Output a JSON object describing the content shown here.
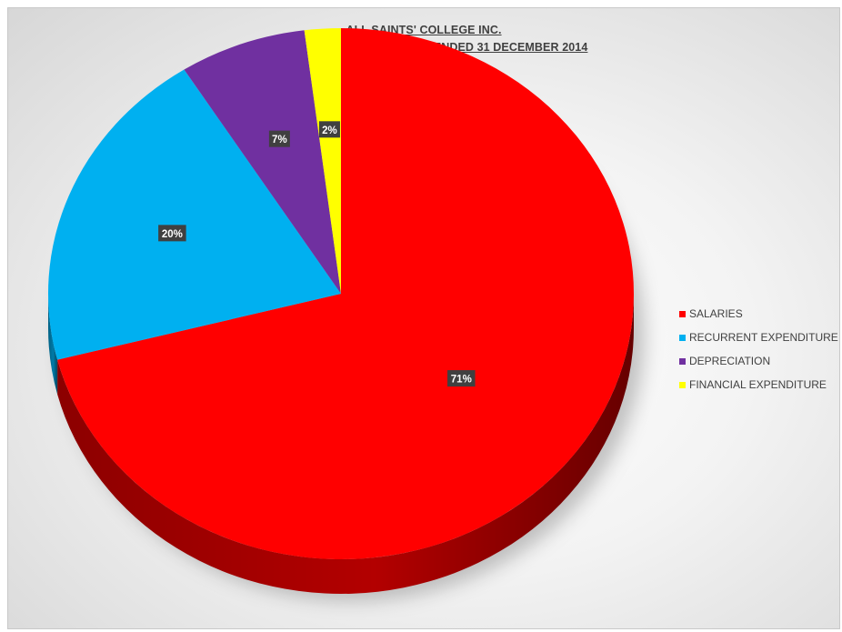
{
  "chart_data": {
    "type": "pie",
    "title": "ALL SAINTS' COLLEGE INC.",
    "subtitle": "EXPENDITURE FOR THE YEAR ENDED 31 DECEMBER 2014",
    "legend_position": "right",
    "three_d": true,
    "slices": [
      {
        "label": "SALARIES",
        "value": 71,
        "display": "71%",
        "color": "#ff0000"
      },
      {
        "label": "RECURRENT EXPENDITURE",
        "value": 20,
        "display": "20%",
        "color": "#00b0f0"
      },
      {
        "label": "DEPRECIATION",
        "value": 7,
        "display": "7%",
        "color": "#7030a0"
      },
      {
        "label": "FINANCIAL EXPENDITURE",
        "value": 2,
        "display": "2%",
        "color": "#ffff00"
      }
    ]
  }
}
